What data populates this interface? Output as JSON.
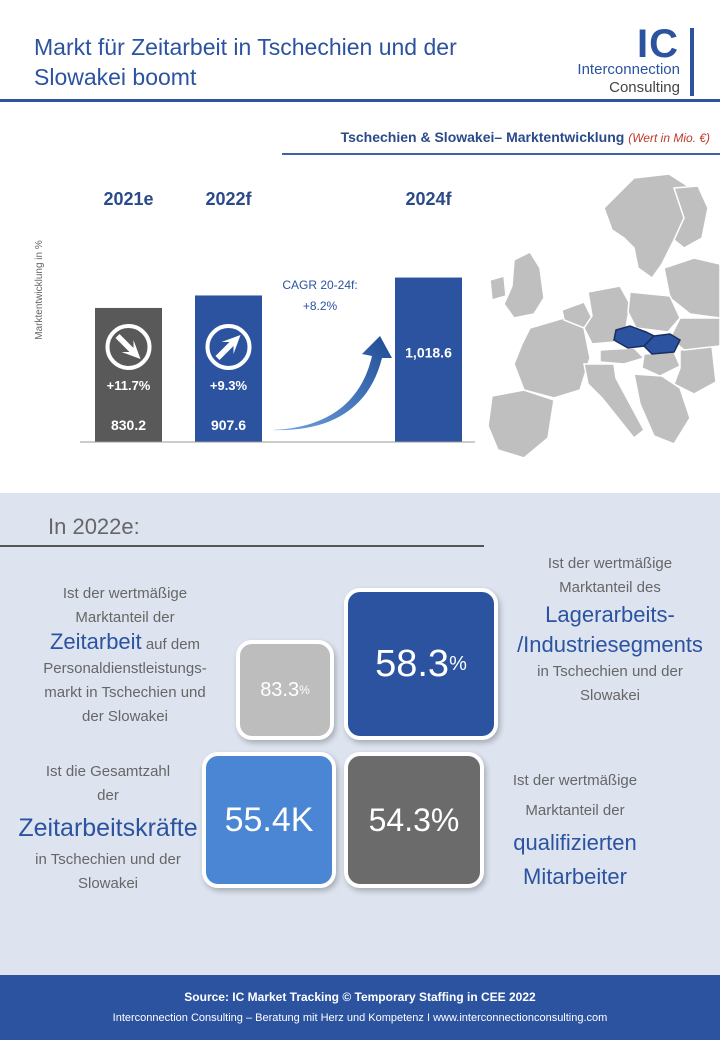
{
  "header": {
    "title": "Markt für Zeitarbeit in Tschechien und der Slowakei boomt",
    "logo_ic": "IC",
    "logo_line1": "Interconnection",
    "logo_line2": "Consulting"
  },
  "chart_data": {
    "type": "bar",
    "title": "Tschechien & Slowakei– Marktentwicklung",
    "title_unit": "(Wert in Mio. €)",
    "ylabel": "Marktentwicklung in %",
    "categories": [
      "2021e",
      "2022f",
      "2024f"
    ],
    "values": [
      830.2,
      907.6,
      1018.6
    ],
    "value_labels": [
      "830.2",
      "907.6",
      "1,018.6"
    ],
    "growth_labels": [
      "+11.7%",
      "+9.3%",
      ""
    ],
    "bar_colors": [
      "#595959",
      "#2b53a0",
      "#2b53a0"
    ],
    "cagr_label_line1": "CAGR 20-24f:",
    "cagr_label_line2": "+8.2%",
    "ylim": [
      0,
      1100
    ],
    "grid": false
  },
  "section": {
    "label": "In 2022e:",
    "tiles": {
      "gray_small": "83.3",
      "gray_small_unit": "%",
      "blue_dark": "58.3",
      "blue_dark_unit": "%",
      "blue_light": "55.4K",
      "gray_dark": "54.3%"
    },
    "desc_tl": {
      "line1": "Ist der wertmäßige",
      "line2": "Marktanteil der",
      "strong": "Zeitarbeit",
      "after_strong": " auf dem",
      "line4": "Personaldienstleistungs-",
      "line5": "markt in Tschechien und",
      "line6": "der Slowakei"
    },
    "desc_tr": {
      "line1": "Ist der wertmäßige",
      "line2": "Marktanteil des",
      "strong1": "Lagerarbeits-",
      "strong2": "/Industriesegments",
      "line5": "in Tschechien und der",
      "line6": "Slowakei"
    },
    "desc_bl": {
      "line1": "Ist die Gesamtzahl",
      "line2": "der",
      "strong": "Zeitarbeitskräfte",
      "line4": "in Tschechien und der",
      "line5": "Slowakei"
    },
    "desc_br": {
      "line1": "Ist der wertmäßige",
      "line2": "Marktanteil der",
      "strong1": "qualifizierten",
      "strong2": "Mitarbeiter"
    }
  },
  "footer": {
    "line1": "Source: IC Market Tracking © Temporary Staffing in CEE 2022",
    "line2": "Interconnection Consulting – Beratung mit Herz und Kompetenz  I  www.interconnectionconsulting.com"
  },
  "colors": {
    "brand_blue": "#2b53a0",
    "light_blue": "#4a86d4",
    "gray": "#6b6b6b",
    "light_gray": "#bdbdbd",
    "panel_bg": "#dde4ef"
  }
}
